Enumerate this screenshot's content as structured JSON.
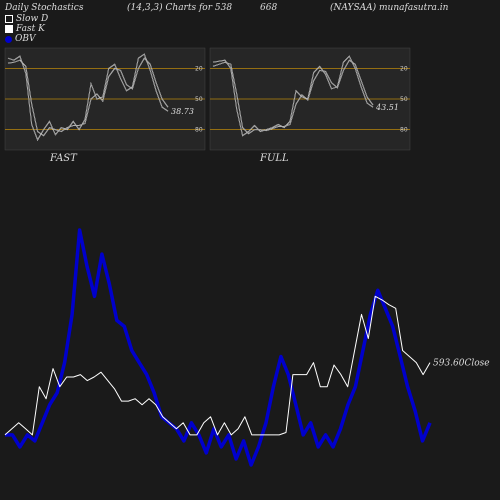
{
  "header": {
    "title": "Daily Stochastics",
    "params": "(14,3,3) Charts for 538",
    "code": "668",
    "symbol": "(NAYSAA) munafasutra.in"
  },
  "legend": [
    {
      "label": "Slow  D",
      "icon": "hollow-square-icon"
    },
    {
      "label": "Fast K",
      "icon": "filled-square-icon"
    },
    {
      "label": "OBV",
      "icon": "blue-dot-icon"
    }
  ],
  "colors": {
    "background": "#1a1a1a",
    "panel": "#262626",
    "level_line": "#b8860b",
    "obv": "#0000cc",
    "price": "#ffffff"
  },
  "chart_data": [
    {
      "type": "line",
      "title": "FAST",
      "ylim": [
        0,
        100
      ],
      "levels": [
        20,
        50,
        80
      ],
      "tick_labels": [
        "80",
        "50",
        "20"
      ],
      "last_value_label": "38.73",
      "series": [
        {
          "name": "Fast K",
          "values": [
            90,
            88,
            92,
            75,
            25,
            10,
            20,
            28,
            15,
            22,
            20,
            28,
            20,
            30,
            65,
            50,
            52,
            80,
            84,
            70,
            58,
            62,
            90,
            94,
            78,
            58,
            42,
            38
          ]
        },
        {
          "name": "Slow  D",
          "values": [
            85,
            86,
            88,
            82,
            45,
            18,
            14,
            22,
            20,
            18,
            22,
            24,
            24,
            26,
            50,
            55,
            48,
            72,
            80,
            78,
            64,
            60,
            80,
            90,
            84,
            66,
            50,
            42
          ]
        }
      ]
    },
    {
      "type": "line",
      "title": "FULL",
      "ylim": [
        0,
        100
      ],
      "levels": [
        20,
        50,
        80
      ],
      "tick_labels": [
        "80",
        "50",
        "20"
      ],
      "last_value_label": "43.51",
      "series": [
        {
          "name": "Fast K",
          "values": [
            86,
            87,
            88,
            80,
            40,
            14,
            18,
            24,
            18,
            20,
            22,
            25,
            22,
            28,
            58,
            52,
            50,
            76,
            82,
            74,
            60,
            62,
            86,
            92,
            80,
            62,
            46,
            42
          ]
        },
        {
          "name": "Slow  D",
          "values": [
            82,
            84,
            86,
            84,
            55,
            22,
            16,
            20,
            20,
            19,
            21,
            23,
            23,
            25,
            45,
            54,
            49,
            68,
            78,
            77,
            66,
            61,
            78,
            88,
            84,
            68,
            52,
            44
          ]
        }
      ]
    },
    {
      "type": "line",
      "last_value_label": "593.60Close",
      "series": [
        {
          "name": "OBV",
          "values": [
            -20,
            -20,
            -30,
            -20,
            -25,
            -10,
            5,
            15,
            40,
            80,
            150,
            120,
            95,
            130,
            105,
            75,
            70,
            50,
            40,
            30,
            15,
            -5,
            -10,
            -15,
            -25,
            -10,
            -20,
            -35,
            -15,
            -30,
            -20,
            -40,
            -25,
            -45,
            -30,
            -10,
            20,
            45,
            30,
            5,
            -20,
            -10,
            -30,
            -20,
            -30,
            -15,
            5,
            20,
            50,
            80,
            100,
            85,
            70,
            45,
            20,
            0,
            -25,
            -10
          ]
        },
        {
          "name": "Close",
          "values": [
            -20,
            -15,
            -10,
            -15,
            -20,
            20,
            10,
            35,
            20,
            28,
            28,
            30,
            25,
            28,
            32,
            25,
            18,
            8,
            8,
            10,
            5,
            10,
            5,
            -5,
            -10,
            -15,
            -10,
            -20,
            -20,
            -10,
            -5,
            -20,
            -10,
            -20,
            -15,
            -5,
            -20,
            -20,
            -20,
            -20,
            -20,
            -18,
            30,
            30,
            30,
            40,
            20,
            20,
            38,
            30,
            20,
            50,
            80,
            60,
            95,
            92,
            88,
            85,
            50,
            45,
            40,
            30,
            40
          ]
        }
      ]
    }
  ]
}
